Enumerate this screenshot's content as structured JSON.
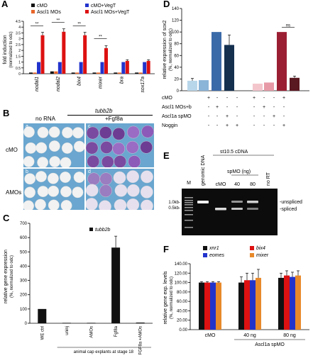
{
  "panels": {
    "A": {
      "label": "A",
      "ylabel": "fold induction",
      "ysub": "(normalized to odc)",
      "legend": [
        "cMO",
        "cMO+VegT",
        "Ascl1 MOs",
        "Ascl1 MOs+VegT"
      ],
      "sig_marks": [
        "**",
        "**",
        "**",
        "**"
      ]
    },
    "B": {
      "label": "B",
      "gene": "tubb2b",
      "col_labels": [
        "no RNA",
        "+Fgf8a"
      ],
      "row_labels": [
        "cMO",
        "AMOs"
      ],
      "sub_labels": [
        "a",
        "b",
        "c",
        "d"
      ]
    },
    "C": {
      "label": "C",
      "ylabel": "relative gene expression",
      "ysub": "(%, normalized to odc)",
      "legend": "tubb2b",
      "xgroup": "animal cap explants at stage 18"
    },
    "D": {
      "label": "D",
      "ylabel": "relative expression of sox2",
      "ysub": "(%, normalized to odc)",
      "sig": "ns",
      "row_labels": [
        "cMO",
        "Ascl1 MOs+b",
        "Ascl1a spMO",
        "Noggin"
      ],
      "row_marks": [
        [
          "+",
          "-",
          "-",
          "+",
          "-",
          "-"
        ],
        [
          "-",
          "+",
          "-",
          "-",
          "+",
          "-"
        ],
        [
          "-",
          "-",
          "+",
          "-",
          "-",
          "+"
        ],
        [
          "-",
          "-",
          "-",
          "+",
          "+",
          "+"
        ]
      ],
      "row_marks_right": [
        [
          "+",
          "-",
          "-",
          "+",
          "-",
          "-"
        ],
        [
          "-",
          "+",
          "-",
          "-",
          "+",
          "-"
        ],
        [
          "-",
          "-",
          "+",
          "-",
          "-",
          "+"
        ],
        [
          "-",
          "-",
          "-",
          "+",
          "+",
          "+"
        ]
      ]
    },
    "E": {
      "label": "E",
      "top_label": "st10.5 cDNA",
      "sub_label": "spMO (ng)",
      "lanes": [
        "M",
        "genomic DNA",
        "cMO",
        "40",
        "80",
        "no RT"
      ],
      "markers": [
        "1.0kb-",
        "0.5kb-"
      ],
      "bands": [
        "-unspliced",
        "-spliced"
      ]
    },
    "F": {
      "label": "F",
      "ylabel": "relative gene exp. levels",
      "ysub": "(%, normalized to odc)",
      "legend": [
        "xnr1",
        "eomes",
        "bix4",
        "mixer"
      ],
      "group_label": "Ascl1a spMO"
    }
  },
  "chart_data": [
    {
      "id": "A",
      "type": "bar",
      "categories": [
        "nodal1",
        "nodal2",
        "bix4",
        "mixer",
        "bra",
        "sox17a"
      ],
      "series": [
        {
          "name": "cMO",
          "values": [
            0.1,
            0.2,
            0.1,
            0.1,
            0.1,
            0.1
          ],
          "color": "#111111"
        },
        {
          "name": "Ascl1 MOs",
          "values": [
            0.1,
            0.2,
            0.1,
            0.1,
            0.1,
            0.1
          ],
          "color": "#e8662a"
        },
        {
          "name": "cMO+VegT",
          "values": [
            1.0,
            1.0,
            1.0,
            1.0,
            1.0,
            1.0
          ],
          "color": "#2233cc"
        },
        {
          "name": "Ascl1 MOs+VegT",
          "values": [
            3.3,
            3.6,
            3.3,
            2.2,
            1.1,
            1.1
          ],
          "color": "#dd1111"
        }
      ],
      "errors": [
        0.25,
        0.25,
        0.25,
        0.2,
        0.1,
        0.1
      ],
      "ylim": [
        0,
        4.5
      ],
      "yticks": [
        0,
        0.5,
        1,
        1.5,
        2,
        2.5,
        3,
        3.5,
        4,
        4.5
      ],
      "ytick_labels": [
        "0",
        "0.5",
        "1",
        "1.5",
        "2",
        "2.5",
        "3",
        "3.5",
        "4",
        "4.5"
      ]
    },
    {
      "id": "C",
      "type": "bar",
      "categories": [
        "WE ctrl",
        "uninj",
        "AMOs",
        "Fgf8a",
        "FGF8a +AMOs"
      ],
      "values": [
        100,
        3,
        3,
        530,
        5
      ],
      "errors": [
        0,
        0,
        0,
        80,
        0
      ],
      "ylim": [
        0,
        700
      ],
      "yticks": [
        0,
        100,
        200,
        300,
        400,
        500,
        600,
        700
      ],
      "ytick_labels": [
        "0",
        "100",
        "200",
        "300",
        "400",
        "500",
        "600",
        "700"
      ],
      "colors": [
        "#111111",
        "#111111",
        "#111111",
        "#111111",
        "#111111"
      ]
    },
    {
      "id": "D",
      "type": "bar",
      "values_left": [
        17,
        18,
        100,
        78
      ],
      "errors_left": [
        4,
        0,
        0,
        17
      ],
      "colors_left": [
        "#b8d6ea",
        "#8ab4d8",
        "#3b6aa8",
        "#15304f"
      ],
      "values_right": [
        12,
        14,
        100,
        22
      ],
      "errors_right": [
        0,
        0,
        0,
        3
      ],
      "colors_right": [
        "#f3c6cc",
        "#e79aa6",
        "#9b1f33",
        "#5a1820"
      ],
      "ylim": [
        0,
        140
      ],
      "yticks": [
        0,
        20,
        40,
        60,
        80,
        100,
        120,
        140
      ],
      "ytick_labels": [
        "0",
        "20",
        "40",
        "60",
        "80",
        "100",
        "120",
        "140"
      ]
    },
    {
      "id": "F",
      "type": "bar",
      "categories": [
        "cMO",
        "40 ng",
        "80 ng"
      ],
      "series": [
        {
          "name": "xnr1",
          "values": [
            100,
            100,
            110
          ],
          "color": "#111111"
        },
        {
          "name": "bix4",
          "values": [
            100,
            105,
            115
          ],
          "color": "#dd1111"
        },
        {
          "name": "eomes",
          "values": [
            100,
            105,
            112
          ],
          "color": "#2233cc"
        },
        {
          "name": "mixer",
          "values": [
            100,
            110,
            115
          ],
          "color": "#e8892a"
        }
      ],
      "errors": [
        [
          2,
          12,
          10
        ],
        [
          2,
          15,
          10
        ],
        [
          2,
          15,
          10
        ],
        [
          2,
          18,
          10
        ]
      ],
      "ylim": [
        0,
        140
      ],
      "yticks": [
        0,
        20,
        40,
        60,
        80,
        100,
        120,
        140
      ],
      "ytick_labels": [
        "0.00",
        "20.00",
        "40.00",
        "60.00",
        "80.00",
        "100.00",
        "120.00",
        "140.00"
      ]
    }
  ]
}
